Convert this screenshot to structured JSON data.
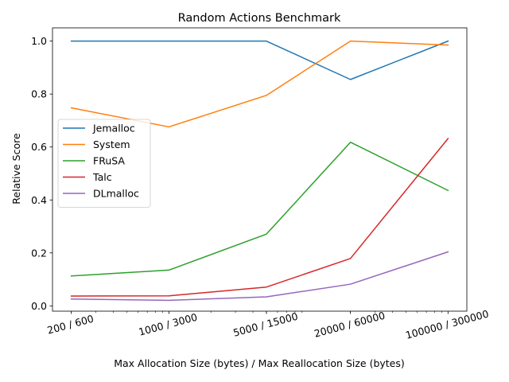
{
  "chart_data": {
    "type": "line",
    "title": "Random Actions Benchmark",
    "xlabel": "Max Allocation Size (bytes) / Max Reallocation Size (bytes)",
    "ylabel": "Relative Score",
    "x_scale": "log",
    "x_values": [
      200,
      1000,
      5000,
      20000,
      100000
    ],
    "categories": [
      "200 / 600",
      "1000 / 3000",
      "5000 / 15000",
      "20000 / 60000",
      "100000 / 300000"
    ],
    "ylim": [
      -0.02,
      1.05
    ],
    "yticks": [
      0.0,
      0.2,
      0.4,
      0.6,
      0.8,
      1.0
    ],
    "yticklabels": [
      "0.0",
      "0.2",
      "0.4",
      "0.6",
      "0.8",
      "1.0"
    ],
    "grid": false,
    "legend_position": "center-left",
    "series": [
      {
        "name": "Jemalloc",
        "color": "#1f77b4",
        "values": [
          1.0,
          1.0,
          1.0,
          0.855,
          1.0
        ]
      },
      {
        "name": "System",
        "color": "#ff7f0e",
        "values": [
          0.748,
          0.676,
          0.795,
          1.0,
          0.985
        ]
      },
      {
        "name": "FRuSA",
        "color": "#2ca02c",
        "values": [
          0.113,
          0.135,
          0.271,
          0.618,
          0.436
        ]
      },
      {
        "name": "Talc",
        "color": "#d62728",
        "values": [
          0.037,
          0.038,
          0.071,
          0.179,
          0.632
        ]
      },
      {
        "name": "DLmalloc",
        "color": "#9467bd",
        "values": [
          0.026,
          0.021,
          0.034,
          0.082,
          0.204
        ]
      }
    ]
  }
}
